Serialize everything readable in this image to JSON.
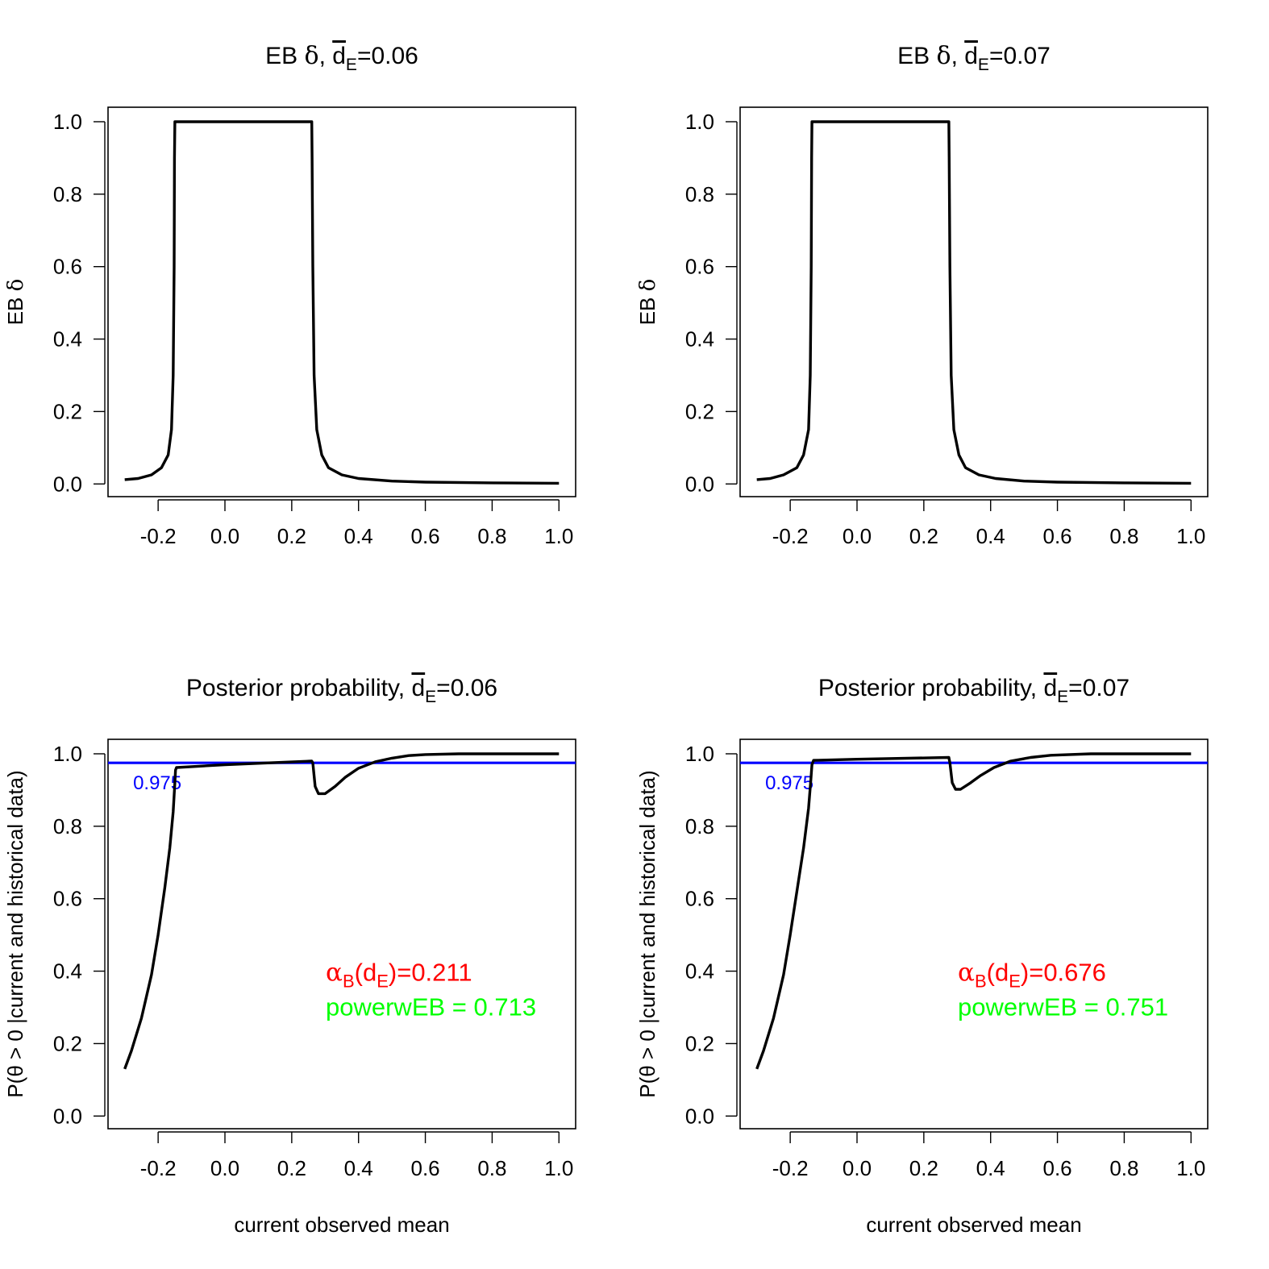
{
  "chart_data": [
    {
      "type": "line",
      "title": {
        "prefix": "EB ",
        "delta": "δ",
        "sep": ", ",
        "d": "d",
        "sub": "E",
        "value": "=0.06"
      },
      "ylabel": {
        "text": "EB ",
        "delta": "δ"
      },
      "xlabel": "",
      "xlim": [
        -0.35,
        1.05
      ],
      "ylim": [
        -0.035,
        1.04
      ],
      "xticks": [
        -0.2,
        0.0,
        0.2,
        0.4,
        0.6,
        0.8,
        1.0
      ],
      "xtick_labels": [
        "-0.2",
        "0.0",
        "0.2",
        "0.4",
        "0.6",
        "0.8",
        "1.0"
      ],
      "yticks": [
        0.0,
        0.2,
        0.4,
        0.6,
        0.8,
        1.0
      ],
      "ytick_labels": [
        "0.0",
        "0.2",
        "0.4",
        "0.6",
        "0.8",
        "1.0"
      ],
      "series": [
        {
          "color": "#000000",
          "points": [
            [
              -0.3,
              0.012
            ],
            [
              -0.26,
              0.015
            ],
            [
              -0.22,
              0.025
            ],
            [
              -0.19,
              0.045
            ],
            [
              -0.17,
              0.08
            ],
            [
              -0.16,
              0.15
            ],
            [
              -0.155,
              0.3
            ],
            [
              -0.152,
              0.6
            ],
            [
              -0.151,
              0.9
            ],
            [
              -0.15,
              1.0
            ],
            [
              0.26,
              1.0
            ],
            [
              0.261,
              0.9
            ],
            [
              0.263,
              0.6
            ],
            [
              0.267,
              0.3
            ],
            [
              0.275,
              0.15
            ],
            [
              0.29,
              0.08
            ],
            [
              0.31,
              0.045
            ],
            [
              0.35,
              0.025
            ],
            [
              0.4,
              0.015
            ],
            [
              0.5,
              0.008
            ],
            [
              0.6,
              0.005
            ],
            [
              0.8,
              0.003
            ],
            [
              1.0,
              0.002
            ]
          ]
        }
      ]
    },
    {
      "type": "line",
      "title": {
        "prefix": "EB ",
        "delta": "δ",
        "sep": ", ",
        "d": "d",
        "sub": "E",
        "value": "=0.07"
      },
      "ylabel": {
        "text": "EB ",
        "delta": "δ"
      },
      "xlabel": "",
      "xlim": [
        -0.35,
        1.05
      ],
      "ylim": [
        -0.035,
        1.04
      ],
      "xticks": [
        -0.2,
        0.0,
        0.2,
        0.4,
        0.6,
        0.8,
        1.0
      ],
      "xtick_labels": [
        "-0.2",
        "0.0",
        "0.2",
        "0.4",
        "0.6",
        "0.8",
        "1.0"
      ],
      "yticks": [
        0.0,
        0.2,
        0.4,
        0.6,
        0.8,
        1.0
      ],
      "ytick_labels": [
        "0.0",
        "0.2",
        "0.4",
        "0.6",
        "0.8",
        "1.0"
      ],
      "series": [
        {
          "color": "#000000",
          "points": [
            [
              -0.3,
              0.012
            ],
            [
              -0.26,
              0.015
            ],
            [
              -0.22,
              0.025
            ],
            [
              -0.18,
              0.045
            ],
            [
              -0.16,
              0.08
            ],
            [
              -0.145,
              0.15
            ],
            [
              -0.14,
              0.3
            ],
            [
              -0.137,
              0.6
            ],
            [
              -0.136,
              0.9
            ],
            [
              -0.135,
              1.0
            ],
            [
              0.275,
              1.0
            ],
            [
              0.276,
              0.9
            ],
            [
              0.278,
              0.6
            ],
            [
              0.282,
              0.3
            ],
            [
              0.29,
              0.15
            ],
            [
              0.305,
              0.08
            ],
            [
              0.325,
              0.045
            ],
            [
              0.365,
              0.025
            ],
            [
              0.415,
              0.015
            ],
            [
              0.5,
              0.008
            ],
            [
              0.6,
              0.005
            ],
            [
              0.8,
              0.003
            ],
            [
              1.0,
              0.002
            ]
          ]
        }
      ]
    },
    {
      "type": "line",
      "title": {
        "prefix": "Posterior probability",
        "sep": ", ",
        "d": "d",
        "sub": "E",
        "value": "=0.06"
      },
      "ylabel": {
        "text": "P(θ > 0 |current and historical data)"
      },
      "xlabel": "current observed mean",
      "xlim": [
        -0.35,
        1.05
      ],
      "ylim": [
        -0.035,
        1.04
      ],
      "xticks": [
        -0.2,
        0.0,
        0.2,
        0.4,
        0.6,
        0.8,
        1.0
      ],
      "xtick_labels": [
        "-0.2",
        "0.0",
        "0.2",
        "0.4",
        "0.6",
        "0.8",
        "1.0"
      ],
      "yticks": [
        0.0,
        0.2,
        0.4,
        0.6,
        0.8,
        1.0
      ],
      "ytick_labels": [
        "0.0",
        "0.2",
        "0.4",
        "0.6",
        "0.8",
        "1.0"
      ],
      "hline": {
        "y": 0.975,
        "color": "#0000ff",
        "label": "0.975"
      },
      "annotation": {
        "alpha_symbol": "α",
        "alpha_sub": "B",
        "alpha_d": "(d",
        "alpha_dsub": "E",
        "alpha_value": ")=0.211",
        "alpha_color": "#ff0000",
        "power_text": "powerwEB =  0.713",
        "power_color": "#00ff00"
      },
      "series": [
        {
          "color": "#000000",
          "points": [
            [
              -0.3,
              0.13
            ],
            [
              -0.28,
              0.18
            ],
            [
              -0.25,
              0.27
            ],
            [
              -0.22,
              0.39
            ],
            [
              -0.2,
              0.5
            ],
            [
              -0.18,
              0.63
            ],
            [
              -0.165,
              0.74
            ],
            [
              -0.155,
              0.84
            ],
            [
              -0.15,
              0.92
            ],
            [
              -0.148,
              0.955
            ],
            [
              -0.145,
              0.962
            ],
            [
              0.0,
              0.97
            ],
            [
              0.26,
              0.98
            ],
            [
              0.263,
              0.975
            ],
            [
              0.27,
              0.91
            ],
            [
              0.28,
              0.89
            ],
            [
              0.3,
              0.89
            ],
            [
              0.33,
              0.91
            ],
            [
              0.36,
              0.935
            ],
            [
              0.4,
              0.96
            ],
            [
              0.45,
              0.978
            ],
            [
              0.5,
              0.988
            ],
            [
              0.55,
              0.995
            ],
            [
              0.6,
              0.998
            ],
            [
              0.7,
              1.0
            ],
            [
              0.85,
              1.0
            ],
            [
              1.0,
              1.0
            ]
          ]
        }
      ]
    },
    {
      "type": "line",
      "title": {
        "prefix": "Posterior probability",
        "sep": ", ",
        "d": "d",
        "sub": "E",
        "value": "=0.07"
      },
      "ylabel": {
        "text": "P(θ > 0 |current and historical data)"
      },
      "xlabel": "current observed mean",
      "xlim": [
        -0.35,
        1.05
      ],
      "ylim": [
        -0.035,
        1.04
      ],
      "xticks": [
        -0.2,
        0.0,
        0.2,
        0.4,
        0.6,
        0.8,
        1.0
      ],
      "xtick_labels": [
        "-0.2",
        "0.0",
        "0.2",
        "0.4",
        "0.6",
        "0.8",
        "1.0"
      ],
      "yticks": [
        0.0,
        0.2,
        0.4,
        0.6,
        0.8,
        1.0
      ],
      "ytick_labels": [
        "0.0",
        "0.2",
        "0.4",
        "0.6",
        "0.8",
        "1.0"
      ],
      "hline": {
        "y": 0.975,
        "color": "#0000ff",
        "label": "0.975"
      },
      "annotation": {
        "alpha_symbol": "α",
        "alpha_sub": "B",
        "alpha_d": "(d",
        "alpha_dsub": "E",
        "alpha_value": ")=0.676",
        "alpha_color": "#ff0000",
        "power_text": "powerwEB =  0.751",
        "power_color": "#00ff00"
      },
      "series": [
        {
          "color": "#000000",
          "points": [
            [
              -0.3,
              0.13
            ],
            [
              -0.28,
              0.18
            ],
            [
              -0.25,
              0.27
            ],
            [
              -0.22,
              0.39
            ],
            [
              -0.2,
              0.5
            ],
            [
              -0.18,
              0.62
            ],
            [
              -0.16,
              0.74
            ],
            [
              -0.145,
              0.85
            ],
            [
              -0.138,
              0.93
            ],
            [
              -0.135,
              0.97
            ],
            [
              -0.13,
              0.982
            ],
            [
              0.0,
              0.985
            ],
            [
              0.275,
              0.99
            ],
            [
              0.278,
              0.975
            ],
            [
              0.285,
              0.92
            ],
            [
              0.295,
              0.902
            ],
            [
              0.31,
              0.902
            ],
            [
              0.34,
              0.92
            ],
            [
              0.37,
              0.94
            ],
            [
              0.41,
              0.962
            ],
            [
              0.46,
              0.98
            ],
            [
              0.52,
              0.99
            ],
            [
              0.58,
              0.996
            ],
            [
              0.7,
              1.0
            ],
            [
              0.85,
              1.0
            ],
            [
              1.0,
              1.0
            ]
          ]
        }
      ]
    }
  ]
}
